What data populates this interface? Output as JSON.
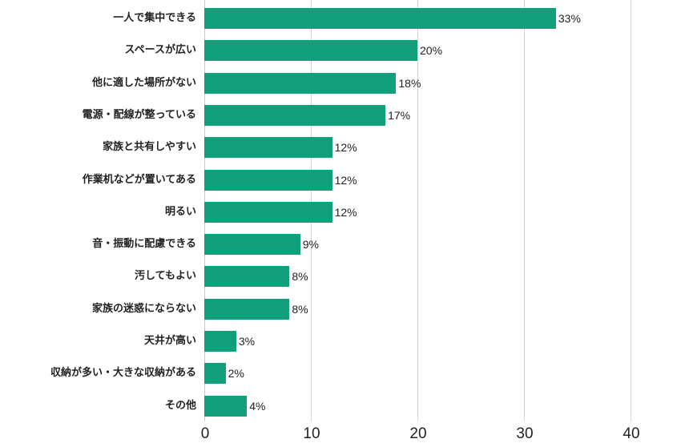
{
  "chart_data": {
    "type": "bar",
    "orientation": "horizontal",
    "title": "",
    "xlabel": "",
    "ylabel": "",
    "xlim": [
      0,
      40
    ],
    "grid": true,
    "legend": null,
    "bar_color": "#12a07c",
    "x_ticks": [
      "0",
      "10",
      "20",
      "30",
      "40"
    ],
    "categories": [
      "一人で集中できる",
      "スペースが広い",
      "他に適した場所がない",
      "電源・配線が整っている",
      "家族と共有しやすい",
      "作業机などが置いてある",
      "明るい",
      "音・振動に配慮できる",
      "汚してもよい",
      "家族の迷惑にならない",
      "天井が高い",
      "収納が多い・大きな収納がある",
      "その他"
    ],
    "values": [
      33,
      20,
      18,
      17,
      12,
      12,
      12,
      9,
      8,
      8,
      3,
      2,
      4
    ],
    "value_labels": [
      "33%",
      "20%",
      "18%",
      "17%",
      "12%",
      "12%",
      "12%",
      "9%",
      "8%",
      "8%",
      "3%",
      "2%",
      "4%"
    ]
  }
}
